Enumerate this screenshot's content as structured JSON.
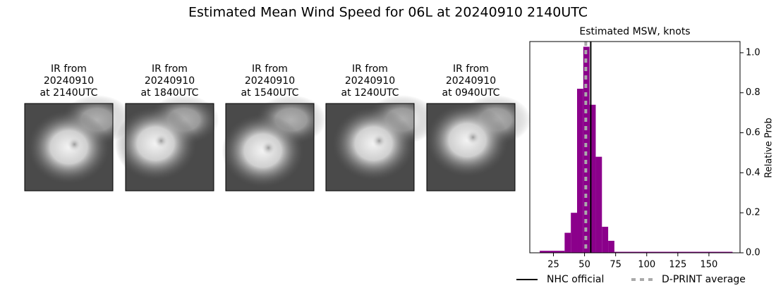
{
  "title": "Estimated Mean Wind Speed for 06L at 20240910 2140UTC",
  "panels": [
    {
      "lines": [
        "IR from",
        "20240910",
        "at 2140UTC"
      ]
    },
    {
      "lines": [
        "IR from",
        "20240910",
        "at 1840UTC"
      ]
    },
    {
      "lines": [
        "IR from",
        "20240910",
        "at 1540UTC"
      ]
    },
    {
      "lines": [
        "IR from",
        "20240910",
        "at 1240UTC"
      ]
    },
    {
      "lines": [
        "IR from",
        "20240910",
        "at 0940UTC"
      ]
    }
  ],
  "chart_data": {
    "type": "histogram",
    "title": "Estimated MSW, knots",
    "ylabel": "Relative Prob",
    "color": "#8b008b",
    "bins": [
      14,
      34,
      39,
      44,
      49,
      54,
      59,
      64,
      69,
      74,
      169
    ],
    "values": [
      0.01,
      0.1,
      0.2,
      0.82,
      1.03,
      0.74,
      0.48,
      0.13,
      0.06,
      0.005
    ],
    "xlim": [
      6,
      175
    ],
    "xticks": [
      25,
      50,
      75,
      100,
      125,
      150
    ],
    "ylim": [
      0,
      1.056
    ],
    "yticks": [
      {
        "value": 0,
        "label": "0.0"
      },
      0.2,
      0.4,
      0.6,
      0.8,
      {
        "value": 1,
        "label": "1.0"
      }
    ],
    "yaxis_side": "right",
    "vlines": [
      {
        "name": "NHC official",
        "value": 55,
        "color": "#000000",
        "dashed": false
      },
      {
        "name": "D-PRINT average",
        "value": 51,
        "color": "#aaaaaa",
        "dashed": true
      }
    ]
  }
}
